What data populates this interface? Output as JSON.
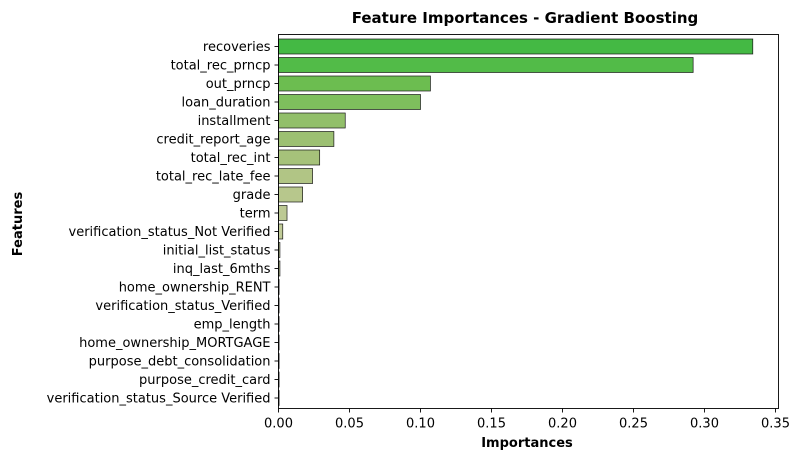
{
  "chart_data": {
    "type": "bar",
    "orientation": "horizontal",
    "title": "Feature Importances - Gradient Boosting",
    "xlabel": "Importances",
    "ylabel": "Features",
    "xlim": [
      0,
      0.35
    ],
    "xticks": [
      "0.00",
      "0.05",
      "0.10",
      "0.15",
      "0.20",
      "0.25",
      "0.30",
      "0.35"
    ],
    "grid": false,
    "categories": [
      "recoveries",
      "total_rec_prncp",
      "out_prncp",
      "loan_duration",
      "installment",
      "credit_report_age",
      "total_rec_int",
      "total_rec_late_fee",
      "grade",
      "term",
      "verification_status_Not Verified",
      "initial_list_status",
      "inq_last_6mths",
      "home_ownership_RENT",
      "verification_status_Verified",
      "emp_length",
      "home_ownership_MORTGAGE",
      "purpose_debt_consolidation",
      "purpose_credit_card",
      "verification_status_Source Verified"
    ],
    "values": [
      0.334,
      0.292,
      0.107,
      0.1,
      0.047,
      0.039,
      0.029,
      0.024,
      0.017,
      0.006,
      0.003,
      0.001,
      0.001,
      0.0003,
      0.0002,
      0.0002,
      0.0001,
      0.0001,
      0.0001,
      0.0001
    ],
    "colors": [
      "#44b944",
      "#52bb48",
      "#6cbd50",
      "#7ebf5d",
      "#92bf6a",
      "#9cc072",
      "#a6c27a",
      "#b1c585",
      "#b7c78c",
      "#bcc993",
      "#c0cb97",
      "#c2cc9a",
      "#c4cd9c",
      "#c5ce9e",
      "#c6cea0",
      "#c7cfa1",
      "#c8cfa2",
      "#c8d0a3",
      "#c9d0a4",
      "#c9d0a5"
    ]
  }
}
